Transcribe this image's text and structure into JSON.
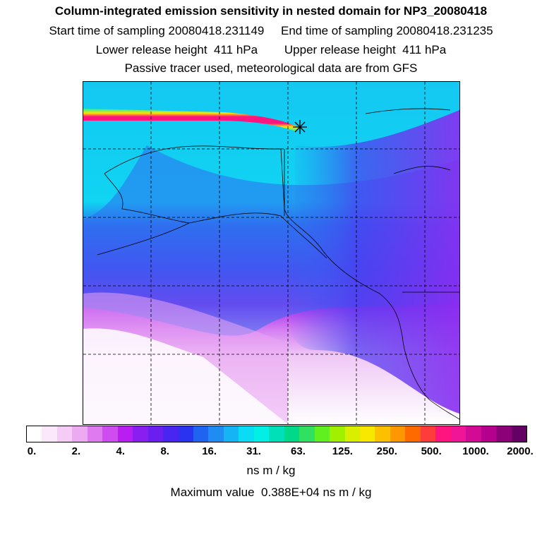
{
  "header": {
    "title": "Column-integrated emission sensitivity in nested domain for NP3_20080418",
    "line1": "Start time of sampling 20080418.231149     End time of sampling 20080418.231235",
    "line2": "Lower release height  411 hPa        Upper release height  411 hPa",
    "line3": "Passive tracer used, meteorological data are from GFS"
  },
  "map": {
    "description_colors": {
      "ocean_cyan": "#12d8f5",
      "blue": "#2f6cf0",
      "violet": "#8a2cf0",
      "pink_light": "#f2b8f5",
      "plume_core": "#e0117f",
      "plume_mid": "#ffe300",
      "plume_edge": "#21f0a0"
    },
    "release_marker": "asterisk"
  },
  "colorbar": {
    "colors": [
      "#ffffff",
      "#fce8fb",
      "#f5ccf5",
      "#ecaaf0",
      "#df7af0",
      "#cf4cf0",
      "#b91ef0",
      "#8a1ef0",
      "#6a1ef0",
      "#4a24f0",
      "#2a34f0",
      "#1e64f0",
      "#1e8cf0",
      "#14b4f5",
      "#0adcf5",
      "#00f0e6",
      "#00e0b8",
      "#00d88a",
      "#30e060",
      "#60f020",
      "#a0f000",
      "#d8f000",
      "#f8e800",
      "#ffc000",
      "#ff9800",
      "#ff6a00",
      "#ff3c3c",
      "#ff1480",
      "#f01496",
      "#d20a96",
      "#b4008c",
      "#8c0078",
      "#640064"
    ],
    "tick_labels": [
      "0.",
      "2.",
      "4.",
      "8.",
      "16.",
      "31.",
      "63.",
      "125.",
      "250.",
      "500.",
      "1000.",
      "2000."
    ],
    "units": "ns m / kg",
    "max_value_text": "Maximum value  0.388E+04 ns m / kg"
  }
}
